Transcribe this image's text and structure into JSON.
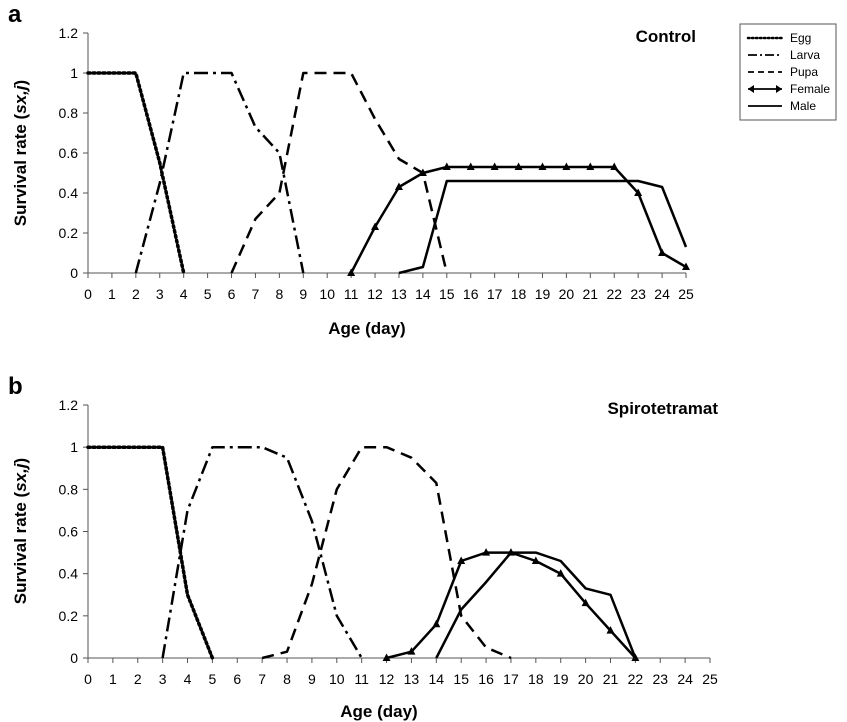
{
  "chart_data": [
    {
      "panel": "a",
      "title": "Control",
      "type": "line",
      "xlabel": "Age (day)",
      "ylabel": "Survival rate (sx,j)",
      "xlim": [
        0,
        25
      ],
      "ylim": [
        0,
        1.2
      ],
      "x_ticks": [
        0,
        1,
        2,
        3,
        4,
        5,
        6,
        7,
        8,
        9,
        10,
        11,
        12,
        13,
        14,
        15,
        16,
        17,
        18,
        19,
        20,
        21,
        22,
        23,
        24,
        25
      ],
      "y_ticks": [
        "0",
        "0.2",
        "0.4",
        "0.6",
        "0.8",
        "1",
        "1.2"
      ],
      "grid": false,
      "legend": "top-right",
      "series": [
        {
          "name": "Egg",
          "style": "dotted",
          "points": [
            [
              0,
              1
            ],
            [
              1,
              1
            ],
            [
              2,
              1
            ],
            [
              3,
              0.55
            ],
            [
              4,
              0
            ]
          ]
        },
        {
          "name": "Larva",
          "style": "dashdot",
          "points": [
            [
              2,
              0
            ],
            [
              3,
              0.45
            ],
            [
              4,
              1
            ],
            [
              5,
              1
            ],
            [
              6,
              1
            ],
            [
              7,
              0.73
            ],
            [
              8,
              0.6
            ],
            [
              9,
              0
            ]
          ]
        },
        {
          "name": "Pupa",
          "style": "dashed",
          "points": [
            [
              6,
              0
            ],
            [
              7,
              0.27
            ],
            [
              8,
              0.4
            ],
            [
              9,
              1
            ],
            [
              10,
              1
            ],
            [
              11,
              1
            ],
            [
              12,
              0.77
            ],
            [
              13,
              0.57
            ],
            [
              14,
              0.5
            ],
            [
              15,
              0
            ]
          ]
        },
        {
          "name": "Female",
          "style": "solid-marker",
          "points": [
            [
              11,
              0
            ],
            [
              12,
              0.23
            ],
            [
              13,
              0.43
            ],
            [
              14,
              0.5
            ],
            [
              15,
              0.53
            ],
            [
              16,
              0.53
            ],
            [
              17,
              0.53
            ],
            [
              18,
              0.53
            ],
            [
              19,
              0.53
            ],
            [
              20,
              0.53
            ],
            [
              21,
              0.53
            ],
            [
              22,
              0.53
            ],
            [
              23,
              0.4
            ],
            [
              24,
              0.1
            ],
            [
              25,
              0.03
            ]
          ]
        },
        {
          "name": "Male",
          "style": "solid",
          "points": [
            [
              13,
              0
            ],
            [
              14,
              0.03
            ],
            [
              15,
              0.46
            ],
            [
              16,
              0.46
            ],
            [
              17,
              0.46
            ],
            [
              18,
              0.46
            ],
            [
              19,
              0.46
            ],
            [
              20,
              0.46
            ],
            [
              21,
              0.46
            ],
            [
              22,
              0.46
            ],
            [
              23,
              0.46
            ],
            [
              24,
              0.43
            ],
            [
              25,
              0.13
            ]
          ]
        }
      ]
    },
    {
      "panel": "b",
      "title": "Spirotetramat",
      "type": "line",
      "xlabel": "Age (day)",
      "ylabel": "Survival rate (sx,j)",
      "xlim": [
        0,
        25
      ],
      "ylim": [
        0,
        1.2
      ],
      "x_ticks": [
        0,
        1,
        2,
        3,
        4,
        5,
        6,
        7,
        8,
        9,
        10,
        11,
        12,
        13,
        14,
        15,
        16,
        17,
        18,
        19,
        20,
        21,
        22,
        23,
        24,
        25
      ],
      "y_ticks": [
        "0",
        "0.2",
        "0.4",
        "0.6",
        "0.8",
        "1",
        "1.2"
      ],
      "grid": false,
      "series": [
        {
          "name": "Egg",
          "style": "dotted",
          "points": [
            [
              0,
              1
            ],
            [
              1,
              1
            ],
            [
              2,
              1
            ],
            [
              3,
              1
            ],
            [
              4,
              0.3
            ],
            [
              5,
              0
            ]
          ]
        },
        {
          "name": "Larva",
          "style": "dashdot",
          "points": [
            [
              3,
              0
            ],
            [
              4,
              0.7
            ],
            [
              5,
              1
            ],
            [
              6,
              1
            ],
            [
              7,
              1
            ],
            [
              8,
              0.95
            ],
            [
              9,
              0.65
            ],
            [
              10,
              0.2
            ],
            [
              11,
              0
            ]
          ]
        },
        {
          "name": "Pupa",
          "style": "dashed",
          "points": [
            [
              7,
              0
            ],
            [
              8,
              0.03
            ],
            [
              9,
              0.35
            ],
            [
              10,
              0.8
            ],
            [
              11,
              1
            ],
            [
              12,
              1
            ],
            [
              13,
              0.95
            ],
            [
              14,
              0.83
            ],
            [
              15,
              0.2
            ],
            [
              16,
              0.05
            ],
            [
              17,
              0
            ]
          ]
        },
        {
          "name": "Female",
          "style": "solid-marker",
          "points": [
            [
              12,
              0
            ],
            [
              13,
              0.03
            ],
            [
              14,
              0.16
            ],
            [
              15,
              0.46
            ],
            [
              16,
              0.5
            ],
            [
              17,
              0.5
            ],
            [
              18,
              0.46
            ],
            [
              19,
              0.4
            ],
            [
              20,
              0.26
            ],
            [
              21,
              0.13
            ],
            [
              22,
              0
            ]
          ]
        },
        {
          "name": "Male",
          "style": "solid",
          "points": [
            [
              14,
              0
            ],
            [
              15,
              0.23
            ],
            [
              16,
              0.36
            ],
            [
              17,
              0.5
            ],
            [
              18,
              0.5
            ],
            [
              19,
              0.46
            ],
            [
              20,
              0.33
            ],
            [
              21,
              0.3
            ],
            [
              22,
              0
            ]
          ]
        }
      ]
    }
  ]
}
